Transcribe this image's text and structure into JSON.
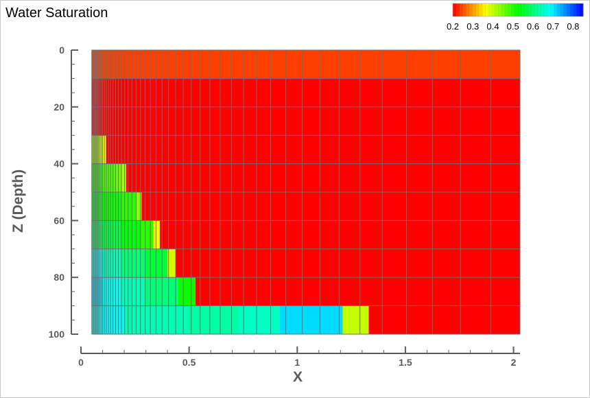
{
  "chart_data": {
    "type": "heatmap",
    "title": "Water Saturation",
    "xlabel": "X",
    "ylabel": "Z (Depth)",
    "xlim": [
      0,
      2.03
    ],
    "ylim": [
      100,
      0
    ],
    "x_ticks": [
      "0",
      "0.5",
      "1",
      "1.5",
      "2"
    ],
    "y_ticks": [
      "0",
      "20",
      "40",
      "60",
      "80",
      "100"
    ],
    "legend": {
      "position": "top-right",
      "range": [
        0.2,
        0.85
      ],
      "tick_labels": [
        "0.2",
        "0.3",
        "0.4",
        "0.5",
        "0.6",
        "0.7",
        "0.8"
      ]
    },
    "grid": {
      "x_start": 0.05,
      "x_end": 2.03,
      "x_edges": [
        0.05,
        0.055,
        0.06,
        0.065,
        0.07,
        0.075,
        0.08,
        0.086,
        0.093,
        0.1,
        0.108,
        0.117,
        0.127,
        0.137,
        0.148,
        0.16,
        0.173,
        0.187,
        0.202,
        0.218,
        0.236,
        0.255,
        0.275,
        0.297,
        0.321,
        0.347,
        0.375,
        0.405,
        0.438,
        0.473,
        0.51,
        0.551,
        0.596,
        0.644,
        0.696,
        0.752,
        0.812,
        0.877,
        0.947,
        1.023,
        1.105,
        1.194,
        1.29,
        1.393,
        1.505,
        1.625,
        1.755,
        1.895,
        2.03
      ],
      "z_edges": [
        0,
        10,
        20,
        30,
        40,
        50,
        60,
        70,
        80,
        90,
        100
      ]
    },
    "layers": [
      {
        "z": [
          0,
          10
        ],
        "segments": [
          [
            0.05,
            2.03,
            0.24
          ]
        ]
      },
      {
        "z": [
          10,
          20
        ],
        "segments": [
          [
            0.05,
            2.03,
            0.2
          ]
        ]
      },
      {
        "z": [
          20,
          30
        ],
        "segments": [
          [
            0.05,
            2.03,
            0.2
          ]
        ]
      },
      {
        "z": [
          30,
          40
        ],
        "segments": [
          [
            0.05,
            0.08,
            0.42
          ],
          [
            0.08,
            0.1,
            0.4
          ],
          [
            0.1,
            0.117,
            0.36
          ],
          [
            0.117,
            2.03,
            0.2
          ]
        ]
      },
      {
        "z": [
          40,
          50
        ],
        "segments": [
          [
            0.05,
            0.1,
            0.5
          ],
          [
            0.1,
            0.16,
            0.48
          ],
          [
            0.16,
            0.187,
            0.46
          ],
          [
            0.187,
            0.21,
            0.42
          ],
          [
            0.21,
            2.03,
            0.2
          ]
        ]
      },
      {
        "z": [
          50,
          60
        ],
        "segments": [
          [
            0.05,
            0.1,
            0.54
          ],
          [
            0.1,
            0.187,
            0.52
          ],
          [
            0.187,
            0.255,
            0.5
          ],
          [
            0.255,
            0.28,
            0.44
          ],
          [
            0.28,
            2.03,
            0.2
          ]
        ]
      },
      {
        "z": [
          60,
          70
        ],
        "segments": [
          [
            0.05,
            0.1,
            0.58
          ],
          [
            0.1,
            0.187,
            0.56
          ],
          [
            0.187,
            0.275,
            0.53
          ],
          [
            0.275,
            0.335,
            0.5
          ],
          [
            0.335,
            0.365,
            0.37
          ],
          [
            0.365,
            2.03,
            0.2
          ]
        ]
      },
      {
        "z": [
          70,
          80
        ],
        "segments": [
          [
            0.05,
            0.1,
            0.69
          ],
          [
            0.1,
            0.187,
            0.64
          ],
          [
            0.187,
            0.3,
            0.6
          ],
          [
            0.3,
            0.4,
            0.56
          ],
          [
            0.4,
            0.44,
            0.39
          ],
          [
            0.44,
            2.03,
            0.2
          ]
        ]
      },
      {
        "z": [
          80,
          90
        ],
        "segments": [
          [
            0.05,
            0.1,
            0.71
          ],
          [
            0.1,
            0.187,
            0.68
          ],
          [
            0.187,
            0.3,
            0.64
          ],
          [
            0.3,
            0.45,
            0.6
          ],
          [
            0.45,
            0.53,
            0.52
          ],
          [
            0.53,
            2.03,
            0.2
          ]
        ]
      },
      {
        "z": [
          90,
          100
        ],
        "segments": [
          [
            0.05,
            0.2,
            0.69
          ],
          [
            0.2,
            0.5,
            0.64
          ],
          [
            0.5,
            0.73,
            0.63
          ],
          [
            0.73,
            0.92,
            0.65
          ],
          [
            0.92,
            1.21,
            0.71
          ],
          [
            1.21,
            1.33,
            0.4
          ],
          [
            1.33,
            2.03,
            0.2
          ]
        ]
      }
    ]
  }
}
